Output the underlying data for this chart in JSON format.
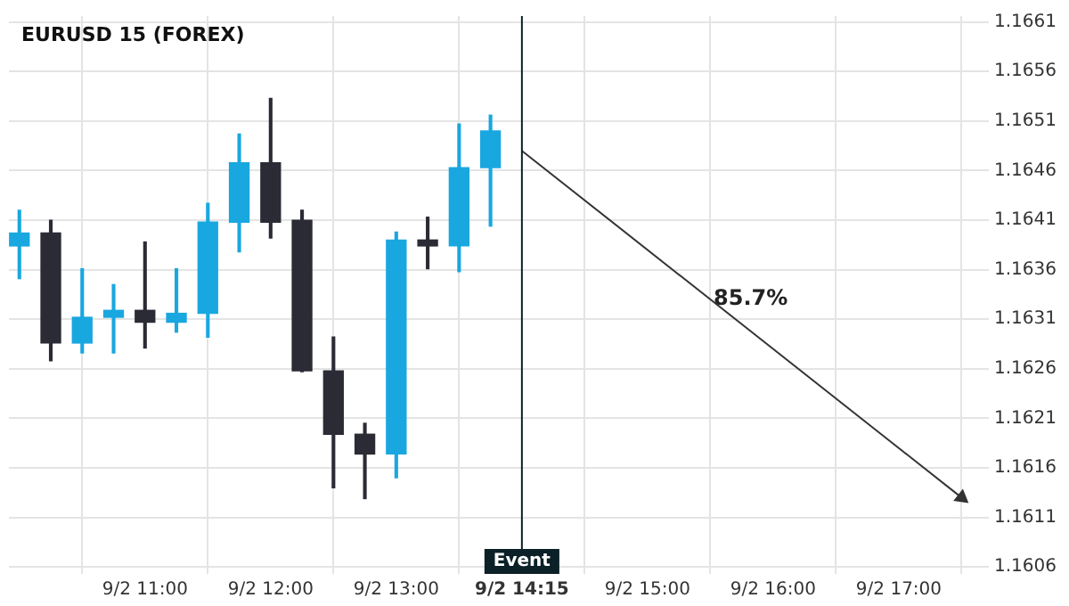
{
  "chart_data": {
    "type": "candlestick",
    "title": "EURUSD 15 (FOREX)",
    "x": [
      "--09-02T10:00",
      "--09-02T10:15",
      "--09-02T10:30",
      "--09-02T10:45",
      "--09-02T11:00",
      "--09-02T11:15",
      "--09-02T11:30",
      "--09-02T11:45",
      "--09-02T12:00",
      "--09-02T12:15",
      "--09-02T12:30",
      "--09-02T12:45",
      "--09-02T13:00",
      "--09-02T13:15",
      "--09-02T13:30",
      "--09-02T13:45"
    ],
    "ohlc": [
      [
        1.16384,
        1.1642,
        1.16351,
        1.16397
      ],
      [
        1.16397,
        1.1641,
        1.16268,
        1.16286
      ],
      [
        1.16286,
        1.16361,
        1.16276,
        1.16312
      ],
      [
        1.16312,
        1.16345,
        1.16276,
        1.16319
      ],
      [
        1.16319,
        1.16388,
        1.16281,
        1.16307
      ],
      [
        1.16307,
        1.16361,
        1.16297,
        1.16316
      ],
      [
        1.16316,
        1.16427,
        1.16292,
        1.16408
      ],
      [
        1.16408,
        1.16497,
        1.16378,
        1.16468
      ],
      [
        1.16468,
        1.16533,
        1.16392,
        1.16408
      ],
      [
        1.1641,
        1.1642,
        1.16257,
        1.16258
      ],
      [
        1.16258,
        1.16292,
        1.1614,
        1.16194
      ],
      [
        1.16194,
        1.16205,
        1.16129,
        1.16174
      ],
      [
        1.16174,
        1.16398,
        1.1615,
        1.1639
      ],
      [
        1.1639,
        1.16413,
        1.16361,
        1.16384
      ],
      [
        1.16384,
        1.16507,
        1.16358,
        1.16463
      ],
      [
        1.16463,
        1.16516,
        1.16404,
        1.165
      ]
    ],
    "colors": [
      "#19a7e0",
      "#2b2b35",
      "#19a7e0",
      "#19a7e0",
      "#2b2b35",
      "#19a7e0",
      "#19a7e0",
      "#19a7e0",
      "#2b2b35",
      "#2b2b35",
      "#2b2b35",
      "#2b2b35",
      "#19a7e0",
      "#2b2b35",
      "#19a7e0",
      "#19a7e0"
    ],
    "series": [
      {
        "type": "line",
        "x": [
          "--09-02T14:00",
          "--09-02T17:30"
        ],
        "values": [
          1.1648,
          1.1613
        ],
        "color": "#333333"
      }
    ],
    "ref_lines": [
      {
        "axis": "x",
        "value": "--09-02T14:00",
        "label": "Event",
        "color": "#0b2027"
      }
    ],
    "annotations": [
      "85.7%"
    ],
    "xlim": [
      "--09-02T09:55",
      "--09-02T17:43"
    ],
    "xticks": [
      {
        "value": "--09-02T11:00",
        "label": "9/2 11:00"
      },
      {
        "value": "--09-02T12:00",
        "label": "9/2 12:00"
      },
      {
        "value": "--09-02T13:00",
        "label": "9/2 13:00"
      },
      {
        "value": "--09-02T14:00",
        "label": "9/2 14:15"
      },
      {
        "value": "--09-02T15:00",
        "label": "9/2 15:00"
      },
      {
        "value": "--09-02T16:00",
        "label": "9/2 16:00"
      },
      {
        "value": "--09-02T17:00",
        "label": "9/2 17:00"
      }
    ],
    "ylim": [
      1.16053,
      1.16616
    ],
    "yticks": [
      1.1606,
      1.1611,
      1.1616,
      1.1621,
      1.1626,
      1.1631,
      1.1636,
      1.1641,
      1.1646,
      1.1651,
      1.1656,
      1.1661
    ],
    "grid": true,
    "legend": false
  }
}
